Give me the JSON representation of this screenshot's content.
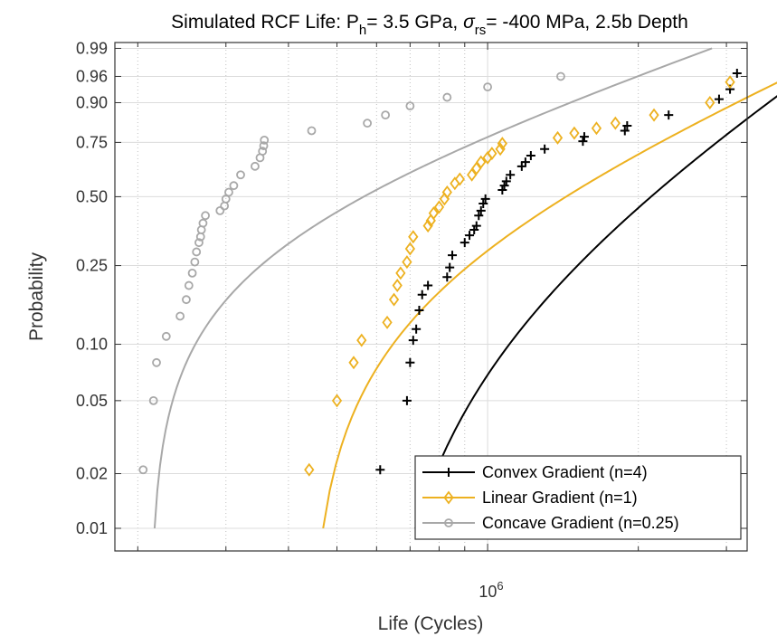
{
  "chart_data": {
    "type": "scatter",
    "title_main": "Simulated RCF Life: P",
    "title_sub_h": "h",
    "title_mid": "= 3.5 GPa, ",
    "title_sigma": "σ",
    "title_sub_rs": "rs",
    "title_end": "= -400 MPa, 2.5b Depth",
    "xlabel": "Life (Cycles)",
    "ylabel": "Probability",
    "xscale": "log",
    "yscale": "weibull",
    "xlim": [
      180000,
      3300000
    ],
    "ylim": [
      0.0075,
      0.993
    ],
    "xtick_label_base": "10",
    "xtick_label_exp": "6",
    "yticks": [
      0.01,
      0.02,
      0.05,
      0.1,
      0.25,
      0.5,
      0.75,
      0.9,
      0.96,
      0.99
    ],
    "ytick_labels": [
      "0.01",
      "0.02",
      "0.05",
      "0.10",
      "0.25",
      "0.50",
      "0.75",
      "0.90",
      "0.96",
      "0.99"
    ],
    "grid": true,
    "legend_position": "bottom-right",
    "colors": {
      "convex": "#000000",
      "linear": "#EDB120",
      "concave": "#A8A8A8",
      "grid_major": "#dcdcdc",
      "grid_minor": "#c0c0c0",
      "axis": "#333333"
    },
    "series": [
      {
        "name": "Convex Gradient (n=4)",
        "key": "convex",
        "marker": "plus",
        "fit": {
          "eta": 1900000,
          "beta": 1.75,
          "x0": 580000,
          "pmin": 0.01,
          "pmax": 0.99
        },
        "points": [
          [
            610000,
            0.021
          ],
          [
            690000,
            0.05
          ],
          [
            700000,
            0.08
          ],
          [
            710000,
            0.105
          ],
          [
            720000,
            0.12
          ],
          [
            730000,
            0.15
          ],
          [
            740000,
            0.18
          ],
          [
            760000,
            0.2
          ],
          [
            830000,
            0.22
          ],
          [
            840000,
            0.245
          ],
          [
            850000,
            0.28
          ],
          [
            900000,
            0.32
          ],
          [
            920000,
            0.345
          ],
          [
            940000,
            0.365
          ],
          [
            950000,
            0.38
          ],
          [
            960000,
            0.42
          ],
          [
            970000,
            0.44
          ],
          [
            980000,
            0.47
          ],
          [
            990000,
            0.49
          ],
          [
            1070000,
            0.53
          ],
          [
            1080000,
            0.55
          ],
          [
            1090000,
            0.57
          ],
          [
            1110000,
            0.6
          ],
          [
            1170000,
            0.64
          ],
          [
            1190000,
            0.66
          ],
          [
            1220000,
            0.69
          ],
          [
            1300000,
            0.72
          ],
          [
            1550000,
            0.755
          ],
          [
            1560000,
            0.775
          ],
          [
            1880000,
            0.8
          ],
          [
            1900000,
            0.82
          ],
          [
            2300000,
            0.86
          ],
          [
            2900000,
            0.91
          ],
          [
            3050000,
            0.935
          ],
          [
            3150000,
            0.965
          ]
        ]
      },
      {
        "name": "Linear Gradient (n=1)",
        "key": "linear",
        "marker": "diamond",
        "fit": {
          "eta": 1350000,
          "beta": 1.2,
          "x0": 440000,
          "pmin": 0.01,
          "pmax": 0.99
        },
        "points": [
          [
            440000,
            0.021
          ],
          [
            500000,
            0.05
          ],
          [
            540000,
            0.08
          ],
          [
            560000,
            0.105
          ],
          [
            630000,
            0.13
          ],
          [
            650000,
            0.17
          ],
          [
            660000,
            0.2
          ],
          [
            670000,
            0.23
          ],
          [
            690000,
            0.26
          ],
          [
            700000,
            0.3
          ],
          [
            710000,
            0.34
          ],
          [
            760000,
            0.38
          ],
          [
            770000,
            0.4
          ],
          [
            780000,
            0.43
          ],
          [
            800000,
            0.455
          ],
          [
            820000,
            0.49
          ],
          [
            830000,
            0.52
          ],
          [
            860000,
            0.56
          ],
          [
            880000,
            0.58
          ],
          [
            930000,
            0.6
          ],
          [
            950000,
            0.63
          ],
          [
            970000,
            0.66
          ],
          [
            1000000,
            0.68
          ],
          [
            1020000,
            0.7
          ],
          [
            1060000,
            0.72
          ],
          [
            1070000,
            0.745
          ],
          [
            1380000,
            0.77
          ],
          [
            1490000,
            0.79
          ],
          [
            1650000,
            0.81
          ],
          [
            1800000,
            0.83
          ],
          [
            2150000,
            0.86
          ],
          [
            2780000,
            0.9
          ],
          [
            3050000,
            0.95
          ]
        ]
      },
      {
        "name": "Concave Gradient (n=0.25)",
        "key": "concave",
        "marker": "circle",
        "fit": {
          "eta": 520000,
          "beta": 0.95,
          "x0": 212000,
          "pmin": 0.01,
          "pmax": 0.99
        },
        "points": [
          [
            205000,
            0.021
          ],
          [
            215000,
            0.05
          ],
          [
            218000,
            0.08
          ],
          [
            228000,
            0.11
          ],
          [
            243000,
            0.14
          ],
          [
            250000,
            0.17
          ],
          [
            253000,
            0.2
          ],
          [
            257000,
            0.23
          ],
          [
            260000,
            0.26
          ],
          [
            262000,
            0.29
          ],
          [
            265000,
            0.32
          ],
          [
            267000,
            0.34
          ],
          [
            268000,
            0.365
          ],
          [
            270000,
            0.39
          ],
          [
            273000,
            0.42
          ],
          [
            292000,
            0.44
          ],
          [
            298000,
            0.46
          ],
          [
            300000,
            0.49
          ],
          [
            304000,
            0.52
          ],
          [
            311000,
            0.55
          ],
          [
            321000,
            0.6
          ],
          [
            343000,
            0.64
          ],
          [
            351000,
            0.68
          ],
          [
            355000,
            0.71
          ],
          [
            357000,
            0.735
          ],
          [
            358000,
            0.76
          ],
          [
            445000,
            0.8
          ],
          [
            575000,
            0.83
          ],
          [
            625000,
            0.86
          ],
          [
            700000,
            0.89
          ],
          [
            830000,
            0.915
          ],
          [
            1000000,
            0.94
          ],
          [
            1400000,
            0.96
          ]
        ]
      }
    ]
  }
}
